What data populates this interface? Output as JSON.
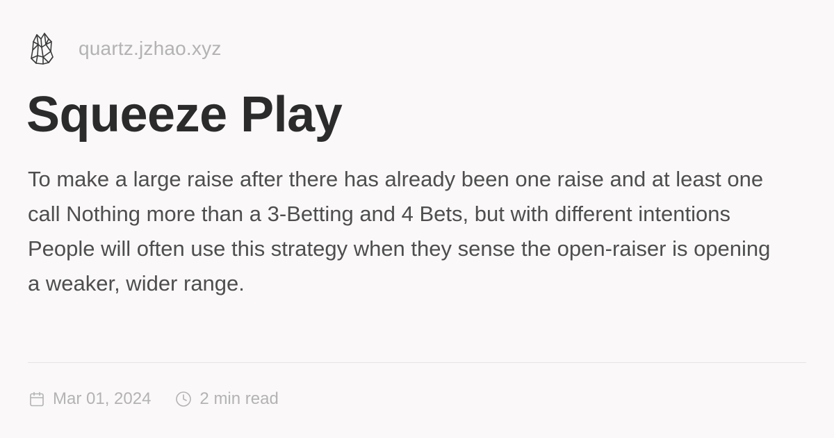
{
  "site": {
    "logo_icon": "crystal-logo-icon",
    "name": "quartz.jzhao.xyz"
  },
  "article": {
    "title": "Squeeze Play",
    "description": "To make a large raise after there has already been one raise and at least one call Nothing more than a 3-Betting and 4 Bets, but with different intentions People will often use this strategy when they sense the open-raiser is opening a weaker, wider range."
  },
  "meta": {
    "date_icon": "calendar-icon",
    "date": "Mar 01, 2024",
    "reading_time_icon": "clock-icon",
    "reading_time": "2 min read"
  },
  "colors": {
    "background": "#faf8f8",
    "title": "#2b2b2b",
    "body_text": "#4e4e4e",
    "muted_text": "#b3b3b3",
    "divider": "#e5e5e5"
  }
}
